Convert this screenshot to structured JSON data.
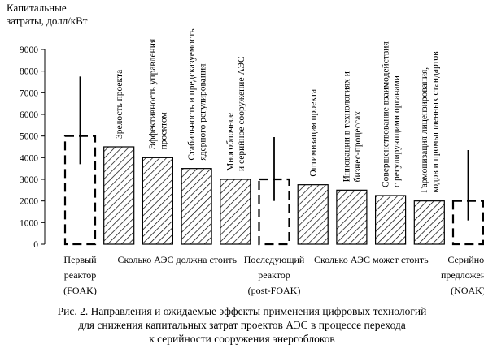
{
  "chart_data": {
    "type": "bar",
    "ylabel_lines": [
      "Капитальные",
      "затраты, долл/кВт"
    ],
    "ylim": [
      0,
      9000
    ],
    "yticks": [
      0,
      1000,
      2000,
      3000,
      4000,
      5000,
      6000,
      7000,
      8000,
      9000
    ],
    "grid": false,
    "legend": "none",
    "bars": [
      {
        "value": 5000,
        "style": "dashed",
        "error_range": [
          3700,
          7750
        ]
      },
      {
        "value": 4500,
        "style": "hatched",
        "label_lines": [
          "Зрелость проекта"
        ]
      },
      {
        "value": 4000,
        "style": "hatched",
        "label_lines": [
          "Эффективность управления",
          "проектом"
        ]
      },
      {
        "value": 3500,
        "style": "hatched",
        "label_lines": [
          "Стабильность и предсказуемость",
          "ядерного регулирования"
        ]
      },
      {
        "value": 3000,
        "style": "hatched",
        "label_lines": [
          "Многоблочное",
          "и серийное сооружение АЭС"
        ]
      },
      {
        "value": 3000,
        "style": "dashed",
        "error_range": [
          2000,
          4950
        ]
      },
      {
        "value": 2750,
        "style": "hatched",
        "label_lines": [
          "Оптимизация проекта"
        ]
      },
      {
        "value": 2500,
        "style": "hatched",
        "label_lines": [
          "Инновации в технологиях и",
          "бизнес-процессах"
        ]
      },
      {
        "value": 2250,
        "style": "hatched",
        "label_lines": [
          "Совершенствование взаимодействия",
          "с регулирующими органами"
        ]
      },
      {
        "value": 2000,
        "style": "hatched",
        "label_lines": [
          "Гармонизация лицензирования,",
          "кодов и промышленных стандартов"
        ]
      },
      {
        "value": 2000,
        "style": "dashed",
        "error_range": [
          1100,
          4350
        ]
      }
    ],
    "bottom_labels": [
      {
        "lines": [
          "Первый",
          "реактор",
          "(FOAK)"
        ],
        "under_bar": 0
      },
      {
        "lines": [
          "Сколько АЭС должна стоить"
        ],
        "under_bar": 2.5
      },
      {
        "lines": [
          "Последующий",
          "реактор",
          "(post-FOAK)"
        ],
        "under_bar": 5
      },
      {
        "lines": [
          "Сколько АЭС может стоить"
        ],
        "under_bar": 7.5
      },
      {
        "lines": [
          "Серийное",
          "предложение",
          "(NOAK)"
        ],
        "under_bar": 10
      }
    ]
  },
  "caption": {
    "lines": [
      "Рис. 2. Направления и ожидаемые эффекты применения цифровых технологий",
      "для снижения капитальных затрат проектов АЭС в процессе перехода",
      "к серийности сооружения энергоблоков"
    ]
  }
}
